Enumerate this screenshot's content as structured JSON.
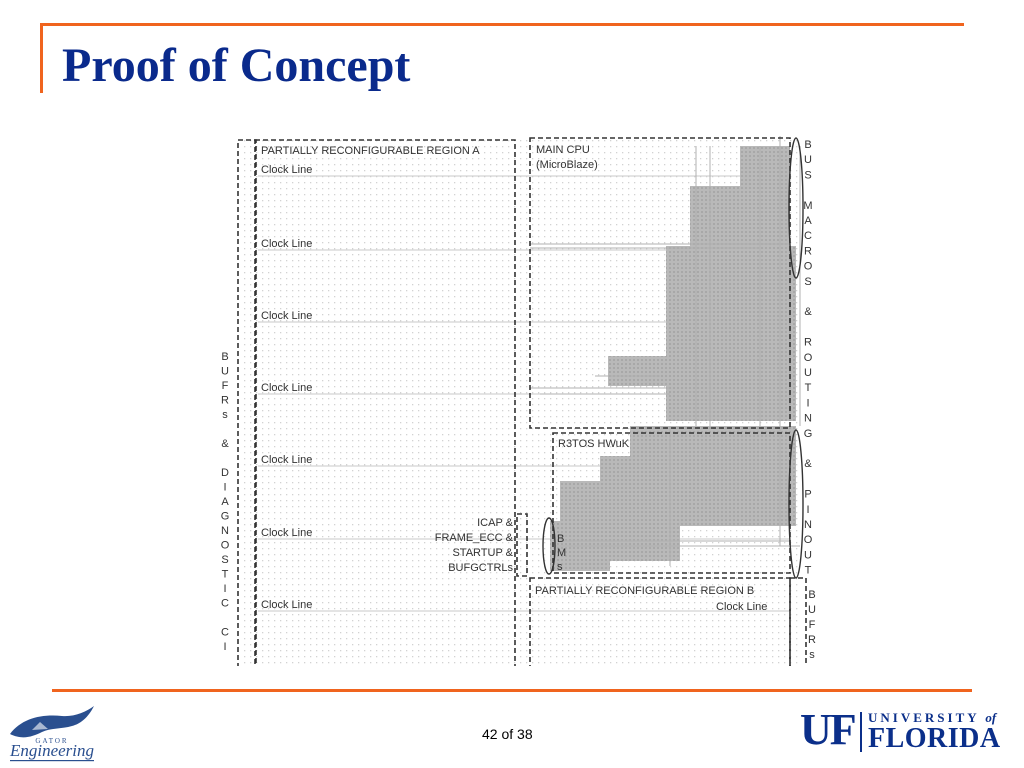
{
  "slide": {
    "title": "Proof of Concept",
    "page_number": "42 of 38"
  },
  "figure": {
    "region_a": "PARTIALLY RECONFIGURABLE REGION A",
    "region_b": "PARTIALLY RECONFIGURABLE REGION B",
    "main_cpu_line1": "MAIN CPU",
    "main_cpu_line2": "(MicroBlaze)",
    "r3tos": "R3TOS HWuK",
    "clock_line": "Clock Line",
    "icap_lines": [
      "ICAP &",
      "FRAME_ECC &",
      "STARTUP &",
      "BUFGCTRLs"
    ],
    "bms_letters": [
      "B",
      "M",
      "s"
    ],
    "left_vertical_letters": [
      "B",
      "U",
      "F",
      "R",
      "s",
      "",
      "&",
      "",
      "D",
      "I",
      "A",
      "G",
      "N",
      "O",
      "S",
      "T",
      "I",
      "C",
      "",
      "C",
      "I"
    ],
    "right_vertical_letters": [
      "B",
      "U",
      "S",
      "",
      "M",
      "A",
      "C",
      "R",
      "O",
      "S",
      "",
      "&",
      "",
      "R",
      "O",
      "U",
      "T",
      "I",
      "N",
      "G",
      "",
      "&",
      "",
      "P",
      "I",
      "N",
      "O",
      "U",
      "T"
    ],
    "bottom_right_letters": [
      "B",
      "U",
      "F",
      "R",
      "s"
    ]
  },
  "footer": {
    "logo_left_text": "Engineering",
    "logo_left_sub": "GATOR",
    "uf_mark": "UF",
    "uf_university": "UNIVERSITY",
    "uf_of": "of",
    "uf_florida": "FLORIDA"
  },
  "colors": {
    "accent": "#f0641e",
    "title": "#0a2a8c",
    "uf_blue": "#0b2f8a",
    "routing_gray": "#b4b4b4"
  }
}
